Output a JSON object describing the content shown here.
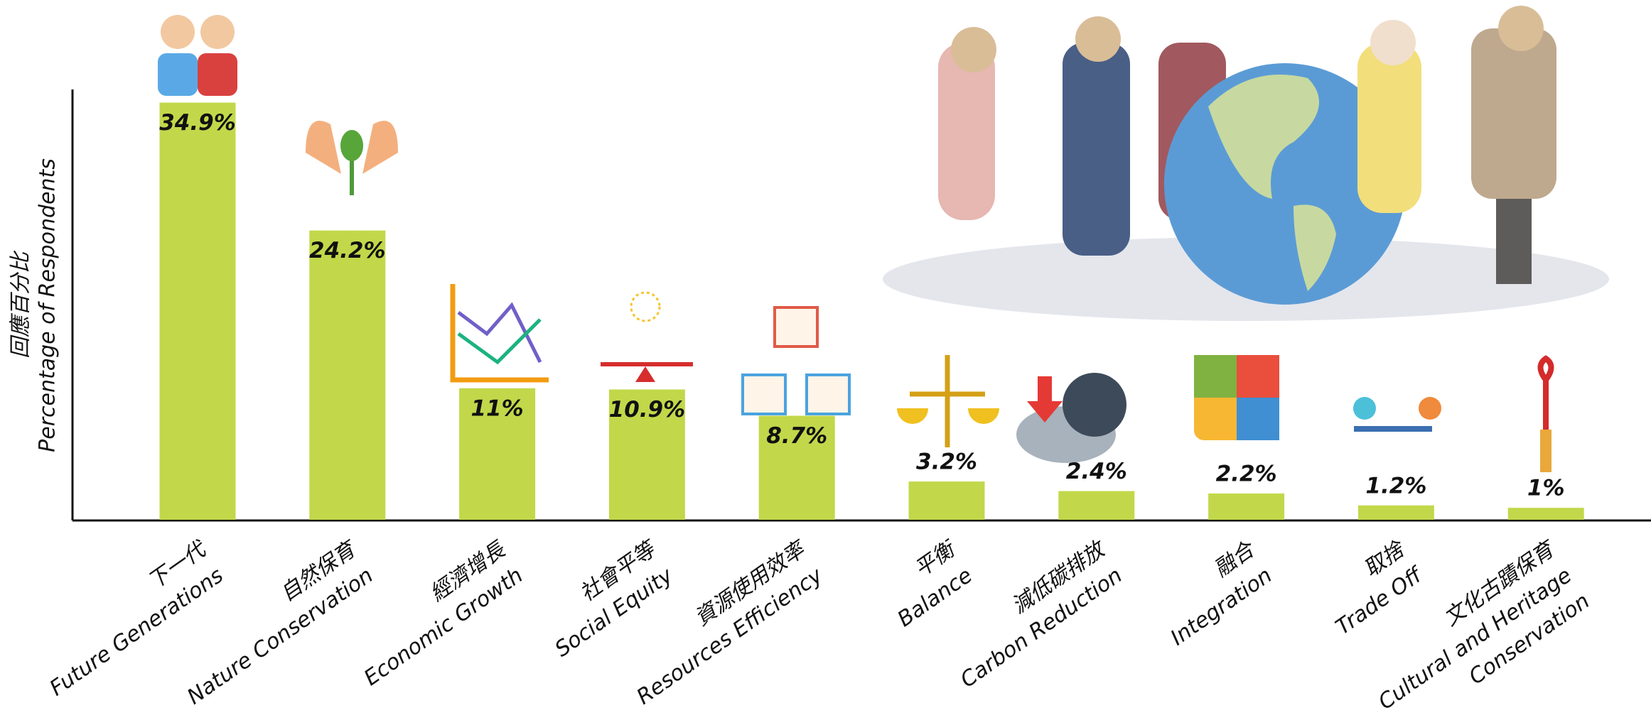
{
  "chart_data": {
    "type": "bar",
    "ylabel": [
      "回應百分比",
      "Percentage of Respondents"
    ],
    "categories": [
      [
        "下一代",
        "Future Generations"
      ],
      [
        "自然保育",
        "Nature Conservation"
      ],
      [
        "經濟增長",
        "Economic Growth"
      ],
      [
        "社會平等",
        "Social Equity"
      ],
      [
        "資源使用效率",
        "Resources Efficiency"
      ],
      [
        "平衡",
        "Balance"
      ],
      [
        "減低碳排放",
        "Carbon Reduction"
      ],
      [
        "融合",
        "Integration"
      ],
      [
        "取捨",
        "Trade Off"
      ],
      [
        "文化古蹟保育",
        "Cultural and Heritage",
        "Conservation"
      ]
    ],
    "values": [
      34.9,
      24.2,
      11,
      10.9,
      8.7,
      3.2,
      2.4,
      2.2,
      1.2,
      1
    ],
    "value_labels": [
      "34.9%",
      "24.2%",
      "11%",
      "10.9%",
      "8.7%",
      "3.2%",
      "2.4%",
      "2.2%",
      "1.2%",
      "1%"
    ],
    "color": "#c2d84a",
    "ylim": [
      0,
      36
    ]
  }
}
